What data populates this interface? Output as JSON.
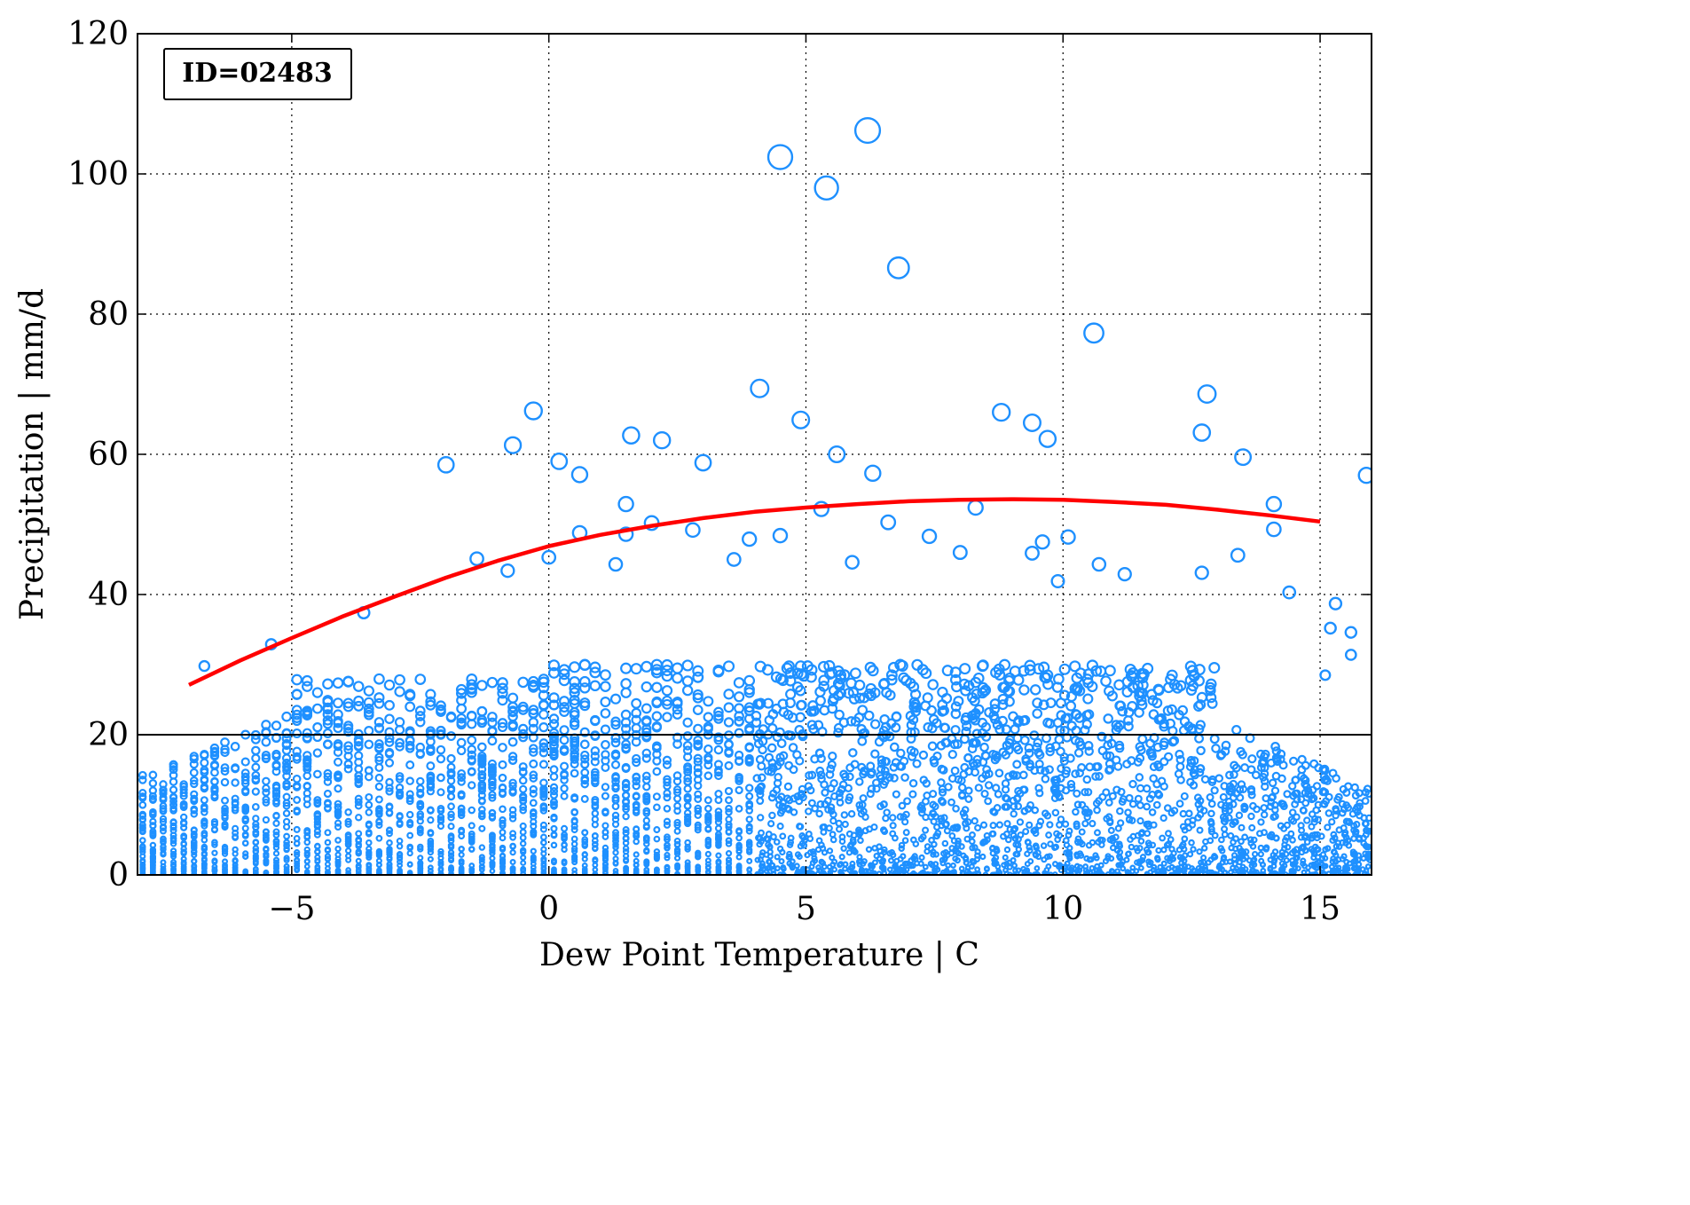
{
  "chart_data": {
    "type": "scatter",
    "title": "",
    "xlabel": "Dew Point Temperature | C",
    "ylabel": "Precipitation | mm/d",
    "xlim": [
      -8,
      16
    ],
    "ylim": [
      0,
      120
    ],
    "x_ticks": [
      -5,
      0,
      5,
      10,
      15
    ],
    "x_tick_labels": [
      "−5",
      "0",
      "5",
      "10",
      "15"
    ],
    "y_ticks": [
      0,
      20,
      40,
      60,
      80,
      100,
      120
    ],
    "y_tick_labels": [
      "0",
      "20",
      "40",
      "60",
      "80",
      "100",
      "120"
    ],
    "grid": true,
    "annotation": "ID=02483",
    "annotation_position": "top-left",
    "marker": "open-circle",
    "marker_color": "#1e90ff",
    "threshold_line": {
      "y": 20,
      "color": "#000000"
    },
    "fit_curve": {
      "color": "#ff0000",
      "x": [
        -7,
        -6,
        -5,
        -4,
        -3,
        -2,
        -1,
        0,
        1,
        2,
        3,
        4,
        5,
        6,
        7,
        8,
        9,
        10,
        11,
        12,
        13,
        14,
        15
      ],
      "y": [
        27.1,
        30.6,
        33.8,
        36.9,
        39.7,
        42.4,
        44.8,
        46.9,
        48.5,
        49.8,
        50.9,
        51.8,
        52.4,
        52.9,
        53.3,
        53.5,
        53.6,
        53.5,
        53.2,
        52.8,
        52.1,
        51.3,
        50.4
      ]
    },
    "notable_points": [
      {
        "x": 6.2,
        "y": 106.2
      },
      {
        "x": 4.5,
        "y": 102.4
      },
      {
        "x": 5.4,
        "y": 98.0
      },
      {
        "x": 6.8,
        "y": 86.6
      },
      {
        "x": 10.6,
        "y": 77.3
      },
      {
        "x": 4.1,
        "y": 69.4
      },
      {
        "x": 12.8,
        "y": 68.6
      },
      {
        "x": -0.3,
        "y": 66.2
      },
      {
        "x": 8.8,
        "y": 66.0
      },
      {
        "x": 4.9,
        "y": 64.9
      },
      {
        "x": 9.4,
        "y": 64.5
      },
      {
        "x": 12.7,
        "y": 63.1
      },
      {
        "x": 1.6,
        "y": 62.7
      },
      {
        "x": 9.7,
        "y": 62.2
      },
      {
        "x": 2.2,
        "y": 62.0
      },
      {
        "x": -0.7,
        "y": 61.3
      },
      {
        "x": 5.6,
        "y": 60.0
      },
      {
        "x": 13.5,
        "y": 59.6
      },
      {
        "x": 0.2,
        "y": 59.0
      },
      {
        "x": 3.0,
        "y": 58.8
      },
      {
        "x": -2.0,
        "y": 58.5
      },
      {
        "x": 0.6,
        "y": 57.1
      },
      {
        "x": 6.3,
        "y": 57.3
      },
      {
        "x": 15.9,
        "y": 57.0
      },
      {
        "x": 1.5,
        "y": 52.9
      },
      {
        "x": 14.1,
        "y": 52.9
      },
      {
        "x": 8.3,
        "y": 52.4
      },
      {
        "x": 5.3,
        "y": 52.2
      },
      {
        "x": 6.6,
        "y": 50.3
      },
      {
        "x": 2.0,
        "y": 50.2
      },
      {
        "x": 14.1,
        "y": 49.3
      },
      {
        "x": 2.8,
        "y": 49.2
      },
      {
        "x": 0.6,
        "y": 48.8
      },
      {
        "x": 4.5,
        "y": 48.4
      },
      {
        "x": 7.4,
        "y": 48.3
      },
      {
        "x": 10.1,
        "y": 48.2
      },
      {
        "x": 1.5,
        "y": 48.6
      },
      {
        "x": 9.6,
        "y": 47.5
      },
      {
        "x": 3.9,
        "y": 47.9
      },
      {
        "x": -1.4,
        "y": 45.1
      },
      {
        "x": 13.4,
        "y": 45.6
      },
      {
        "x": 9.4,
        "y": 45.9
      },
      {
        "x": 8.0,
        "y": 46.0
      },
      {
        "x": 10.7,
        "y": 44.3
      },
      {
        "x": 3.6,
        "y": 45.0
      },
      {
        "x": 0.0,
        "y": 45.3
      },
      {
        "x": -0.8,
        "y": 43.4
      },
      {
        "x": 5.9,
        "y": 44.6
      },
      {
        "x": 1.3,
        "y": 44.3
      },
      {
        "x": 11.2,
        "y": 42.9
      },
      {
        "x": 12.7,
        "y": 43.1
      },
      {
        "x": 9.9,
        "y": 41.9
      },
      {
        "x": 14.4,
        "y": 40.3
      },
      {
        "x": 15.3,
        "y": 38.7
      },
      {
        "x": -3.6,
        "y": 37.4
      },
      {
        "x": -5.4,
        "y": 32.9
      },
      {
        "x": -6.7,
        "y": 29.8
      },
      {
        "x": 15.6,
        "y": 34.6
      },
      {
        "x": 15.6,
        "y": 31.4
      },
      {
        "x": 15.2,
        "y": 35.2
      },
      {
        "x": 15.1,
        "y": 28.5
      }
    ],
    "density_notes": "Dense vertical columns of small circles at every ~0.2 C step from -8 to 16, concentrated below 20 mm/d; marker size grows with precipitation."
  }
}
